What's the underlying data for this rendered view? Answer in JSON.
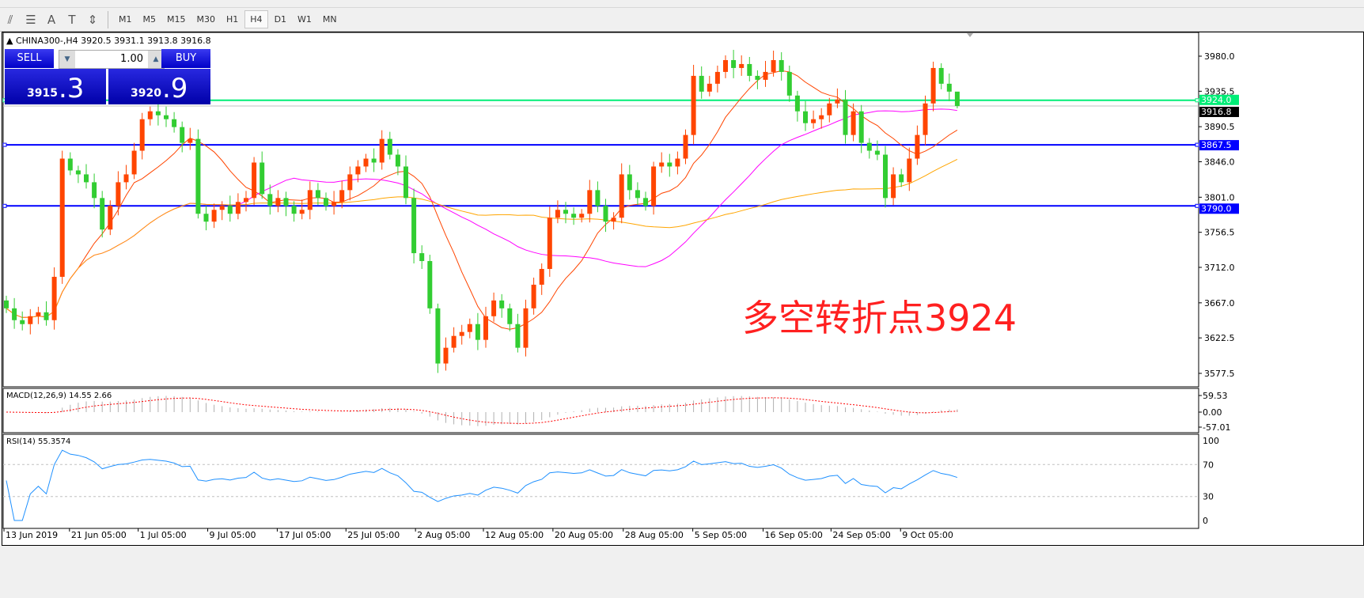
{
  "toolbar": {
    "tools": [
      "fibonacci-fan-icon",
      "fibonacci-icon",
      "text-icon",
      "text-label-icon",
      "arrows-icon"
    ],
    "tool_glyphs": [
      "⫽",
      "☰",
      "A",
      "T",
      "⇕"
    ],
    "timeframes": [
      "M1",
      "M5",
      "M15",
      "M30",
      "H1",
      "H4",
      "D1",
      "W1",
      "MN"
    ],
    "active_timeframe": "H4"
  },
  "chart": {
    "symbol_line": "CHINA300-,H4  3920.5 3931.1 3913.8 3916.8",
    "annotation": "多空转折点3924",
    "colors": {
      "up": "#ff4500",
      "down": "#32cd32",
      "ma_fast": "#ff4500",
      "ma_mid": "#ff00ff",
      "ma_slow": "#ffa500",
      "hline_green": "#00ee77",
      "hline_blue": "#0000ff",
      "rsi": "#1e90ff",
      "macd_signal": "#ff0000"
    }
  },
  "trade_panel": {
    "sell_label": "SELL",
    "buy_label": "BUY",
    "lot": "1.00",
    "sell_price_small": "3915",
    "sell_price_big": ".3",
    "buy_price_small": "3920",
    "buy_price_big": ".9"
  },
  "indicators": {
    "macd_label": "MACD(12,26,9) 14.55 2.66",
    "macd_axis": [
      "59.53",
      "0.00",
      "-57.01"
    ],
    "rsi_label": "RSI(14) 55.3574",
    "rsi_axis": [
      "100",
      "70",
      "30",
      "0"
    ]
  },
  "chart_data": {
    "type": "candlestick",
    "title": "CHINA300-,H4",
    "last_ohlc": {
      "open": 3920.5,
      "high": 3931.1,
      "low": 3913.8,
      "close": 3916.8
    },
    "closes": [
      3660,
      3645,
      3640,
      3650,
      3655,
      3645,
      3700,
      3850,
      3835,
      3830,
      3820,
      3800,
      3760,
      3790,
      3820,
      3830,
      3860,
      3900,
      3910,
      3905,
      3900,
      3890,
      3870,
      3875,
      3780,
      3770,
      3785,
      3790,
      3780,
      3795,
      3800,
      3845,
      3805,
      3790,
      3800,
      3790,
      3780,
      3785,
      3810,
      3800,
      3790,
      3795,
      3810,
      3830,
      3840,
      3850,
      3845,
      3875,
      3855,
      3840,
      3800,
      3730,
      3720,
      3660,
      3590,
      3610,
      3625,
      3630,
      3640,
      3620,
      3650,
      3670,
      3660,
      3640,
      3610,
      3660,
      3690,
      3710,
      3775,
      3785,
      3780,
      3775,
      3780,
      3810,
      3790,
      3770,
      3775,
      3830,
      3810,
      3800,
      3790,
      3840,
      3845,
      3840,
      3850,
      3880,
      3955,
      3935,
      3945,
      3960,
      3975,
      3965,
      3970,
      3955,
      3950,
      3960,
      3975,
      3960,
      3930,
      3910,
      3895,
      3900,
      3905,
      3920,
      3925,
      3880,
      3910,
      3870,
      3860,
      3855,
      3800,
      3830,
      3820,
      3850,
      3880,
      3920,
      3965,
      3945,
      3935,
      3916.8
    ],
    "y_axis_ticks": [
      "3980.0",
      "3935.5",
      "3890.5",
      "3846.0",
      "3801.0",
      "3756.5",
      "3712.0",
      "3667.0",
      "3622.5",
      "3577.5"
    ],
    "ylim": [
      3577.5,
      3980.0
    ],
    "x_axis_labels": [
      "13 Jun 2019",
      "21 Jun 05:00",
      "1 Jul 05:00",
      "9 Jul 05:00",
      "17 Jul 05:00",
      "25 Jul 05:00",
      "2 Aug 05:00",
      "12 Aug 05:00",
      "20 Aug 05:00",
      "28 Aug 05:00",
      "5 Sep 05:00",
      "16 Sep 05:00",
      "24 Sep 05:00",
      "9 Oct 05:00"
    ],
    "horizontal_lines": [
      {
        "label": "3924.0",
        "value": 3924.0,
        "color": "#00ee77"
      },
      {
        "label": "3867.5",
        "value": 3867.5,
        "color": "#0000ff"
      },
      {
        "label": "3790.0",
        "value": 3790.0,
        "color": "#0000ff"
      }
    ],
    "bid_line": {
      "label": "3916.8",
      "value": 3916.8
    },
    "moving_averages": [
      "fast",
      "mid",
      "slow"
    ],
    "grid": false
  }
}
